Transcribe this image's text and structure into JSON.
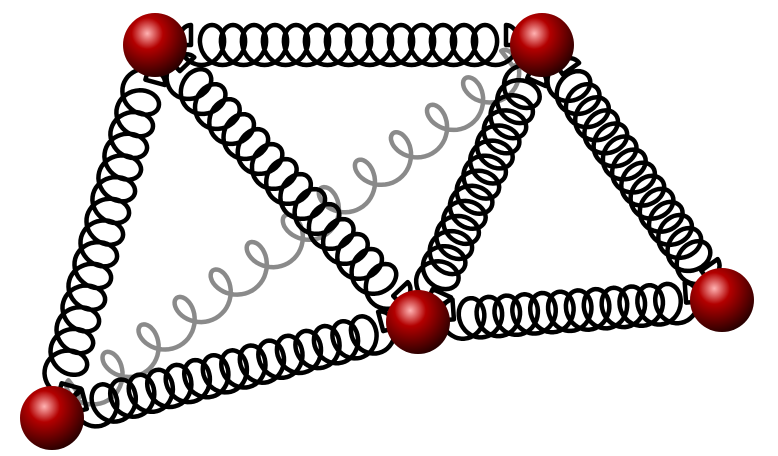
{
  "diagram": {
    "description_visible_text": "",
    "colors": {
      "background": "#ffffff",
      "spring": "#000000",
      "back_spring": "#8a8a8a",
      "mass_highlight": "#ffb3b3",
      "mass_mid": "#b30000",
      "mass_shadow": "#2a0000"
    },
    "masses": [
      {
        "id": "top-left"
      },
      {
        "id": "top-right"
      },
      {
        "id": "center"
      },
      {
        "id": "right"
      },
      {
        "id": "bottom-left"
      }
    ],
    "springs": [
      {
        "id": "top",
        "from": "top-left",
        "to": "top-right",
        "layer": "front",
        "coils": 15
      },
      {
        "id": "left",
        "from": "top-left",
        "to": "bottom-left",
        "layer": "front",
        "coils": 14
      },
      {
        "id": "top-left-to-center",
        "from": "top-left",
        "to": "center",
        "layer": "front",
        "coils": 15
      },
      {
        "id": "top-right-to-center",
        "from": "top-right",
        "to": "center",
        "layer": "front",
        "coils": 14
      },
      {
        "id": "top-right-to-right",
        "from": "top-right",
        "to": "right",
        "layer": "front",
        "coils": 15
      },
      {
        "id": "center-to-right",
        "from": "center",
        "to": "right",
        "layer": "front",
        "coils": 13
      },
      {
        "id": "bottom-to-center",
        "from": "bottom-left",
        "to": "center",
        "layer": "front",
        "coils": 16
      },
      {
        "id": "diagonal-back",
        "from": "bottom-left",
        "to": "top-right",
        "layer": "back",
        "coils": 12
      }
    ]
  }
}
